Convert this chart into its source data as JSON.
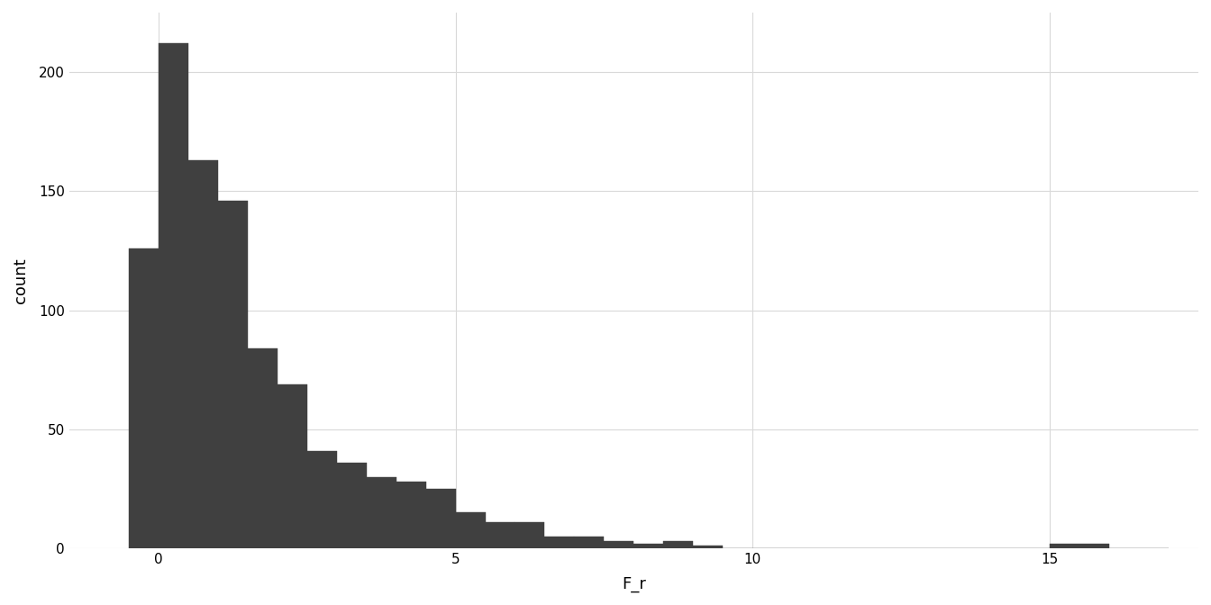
{
  "bar_counts": [
    126,
    212,
    163,
    146,
    84,
    69,
    41,
    36,
    30,
    28,
    25,
    15,
    11,
    11,
    5,
    5,
    3,
    2,
    3,
    1,
    0,
    0,
    0,
    0,
    0,
    0,
    0,
    0,
    0,
    0,
    0,
    2,
    0
  ],
  "bin_edges": [
    -0.5,
    0.0,
    0.5,
    1.0,
    1.5,
    2.0,
    2.5,
    3.0,
    3.5,
    4.0,
    4.5,
    5.0,
    5.5,
    6.0,
    6.5,
    7.0,
    7.5,
    8.0,
    8.5,
    9.0,
    9.5,
    10.0,
    10.5,
    11.0,
    11.5,
    12.0,
    12.5,
    13.0,
    13.5,
    14.0,
    14.5,
    15.0,
    16.0,
    17.0
  ],
  "bar_color": "#404040",
  "bar_edgecolor": "#404040",
  "xlabel": "F_r",
  "ylabel": "count",
  "xlim": [
    -1.5,
    17.5
  ],
  "ylim": [
    0,
    225
  ],
  "xticks": [
    0,
    5,
    10,
    15
  ],
  "yticks": [
    0,
    50,
    100,
    150,
    200
  ],
  "background_color": "#ffffff",
  "grid_color": "#d9d9d9",
  "xlabel_fontsize": 13,
  "ylabel_fontsize": 13,
  "tick_fontsize": 11
}
